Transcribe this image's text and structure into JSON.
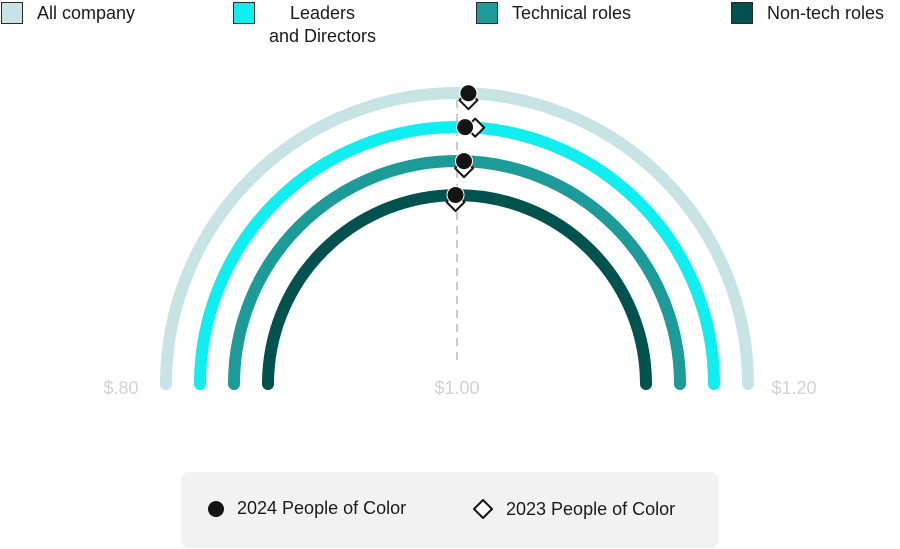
{
  "legend": {
    "items": [
      {
        "label_line1": "All company",
        "label_line2": "",
        "color": "#c8e3e3"
      },
      {
        "label_line1": "Leaders",
        "label_line2": "and Directors",
        "color": "#10eef0"
      },
      {
        "label_line1": "Technical roles",
        "label_line2": "",
        "color": "#1c9b98"
      },
      {
        "label_line1": "Non-tech roles",
        "label_line2": "",
        "color": "#00524e"
      }
    ]
  },
  "bottom_legend": {
    "item_2024": "2024 People of Color",
    "item_2023": "2023 People of Color"
  },
  "chart_data": {
    "type": "semicircle-gauge",
    "title": "",
    "scale": {
      "min": 0.8,
      "max": 1.2,
      "reference": 1.0
    },
    "tick_labels": [
      "$.80",
      "$1.00",
      "$1.20"
    ],
    "series": [
      {
        "name": "All company",
        "color": "#c8e3e3",
        "value_2024": 1.005,
        "value_2023": 1.005
      },
      {
        "name": "Leaders and Directors",
        "color": "#10eef0",
        "value_2024": 1.004,
        "value_2023": 1.009
      },
      {
        "name": "Technical roles",
        "color": "#1c9b98",
        "value_2024": 1.004,
        "value_2023": 1.004
      },
      {
        "name": "Non-tech roles",
        "color": "#00524e",
        "value_2024": 0.999,
        "value_2023": 0.999
      }
    ]
  }
}
